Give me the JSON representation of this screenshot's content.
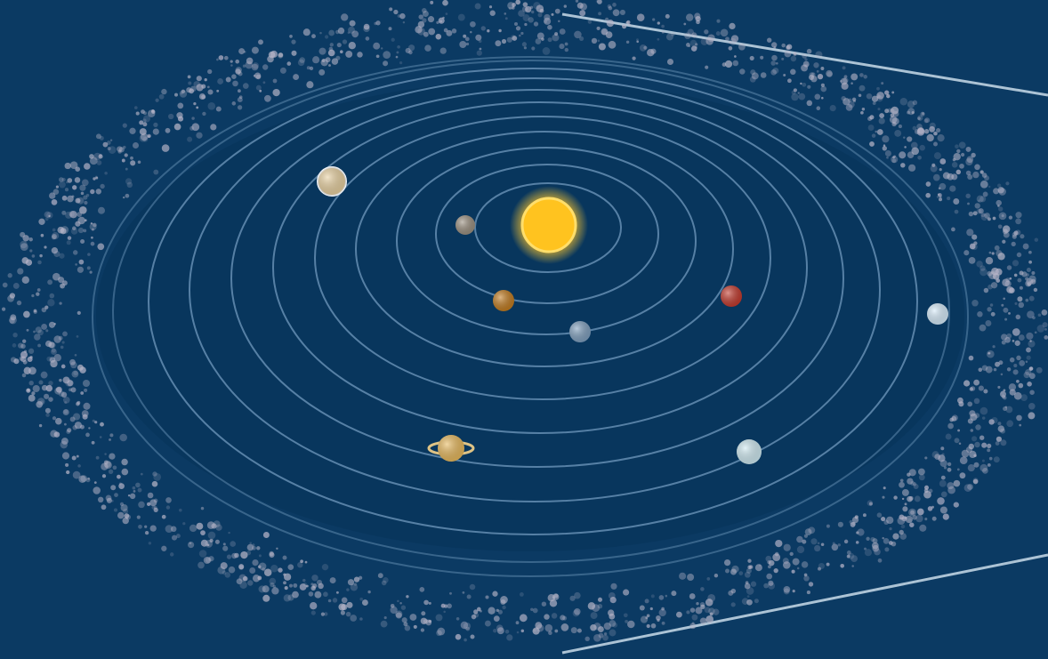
{
  "colors": {
    "background": "#0b3a63",
    "inner_disk": "#08345a",
    "orbit": "#5f88ad",
    "belt": "#b7b5c8",
    "sun": "#ffc31f",
    "sun_glow": "#ffe27a",
    "zoom_line": "#c9dbe9"
  },
  "diagram": {
    "orbit_count": 11,
    "bodies": [
      {
        "name": "sun-icon",
        "color": "#ffc31f"
      },
      {
        "name": "inner-planet-gray-icon",
        "color": "#9a8f7f"
      },
      {
        "name": "inner-planet-orange-icon",
        "color": "#c17b1f"
      },
      {
        "name": "planet-blue-icon",
        "color": "#7f9fbe"
      },
      {
        "name": "planet-red-icon",
        "color": "#c33a2d"
      },
      {
        "name": "planet-pale-yellow-icon",
        "color": "#f5d9a3"
      },
      {
        "name": "ringed-planet-icon",
        "color": "#e7b85c"
      },
      {
        "name": "planet-pale-cyan-icon",
        "color": "#cfeaf2"
      },
      {
        "name": "planet-ice-blue-icon",
        "color": "#d7ecfb"
      }
    ]
  }
}
